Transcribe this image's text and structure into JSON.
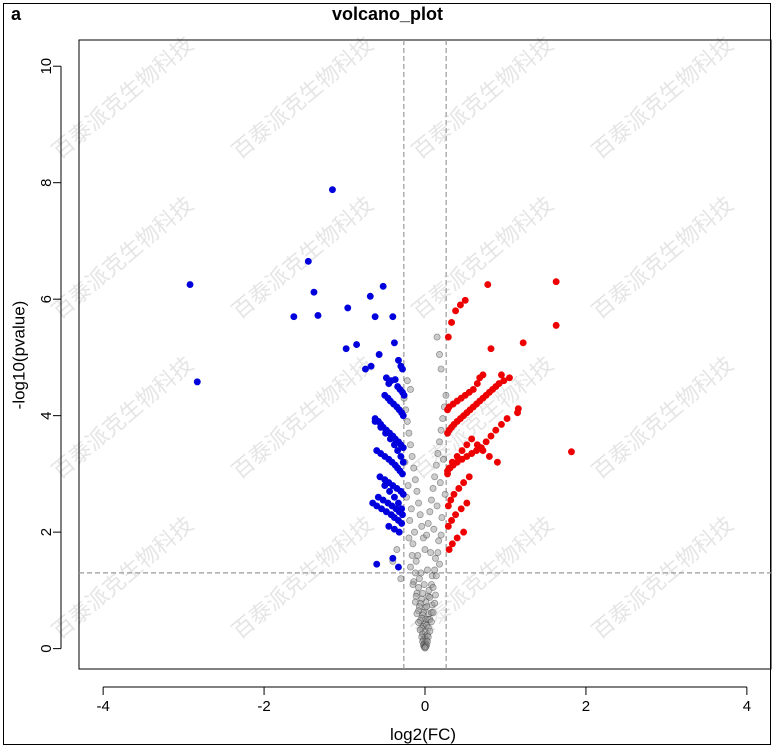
{
  "panel_label": "a",
  "chart_data": {
    "type": "scatter",
    "title": "volcano_plot",
    "xlabel": "log2(FC)",
    "ylabel": "-log10(pvalue)",
    "xlim": [
      -4.3,
      4.3
    ],
    "ylim": [
      -0.35,
      10.45
    ],
    "x_ticks": [
      -4,
      -2,
      0,
      2,
      4
    ],
    "y_ticks": [
      0,
      2,
      4,
      6,
      8,
      10
    ],
    "thresholds": {
      "log2fc": [
        -0.263,
        0.263
      ],
      "neg_log10_p": 1.301
    },
    "grid": false,
    "colors": {
      "down": "#0000dd",
      "up": "#ee0000",
      "ns": "#000000",
      "threshold_line": "#999999"
    },
    "series": [
      {
        "values_x": [
          -2.92,
          -2.83,
          -1.45,
          -1.38,
          -1.33,
          -1.63,
          -1.15,
          -0.96,
          -0.98,
          -0.85,
          -0.74,
          -0.68,
          -0.67,
          -0.62,
          -0.57,
          -0.52,
          -0.4,
          -0.38,
          -0.33,
          -0.3,
          -0.28,
          -0.48,
          -0.45,
          -0.42,
          -0.37,
          -0.34,
          -0.31,
          -0.28,
          -0.26,
          -0.5,
          -0.46,
          -0.43,
          -0.39,
          -0.35,
          -0.32,
          -0.29,
          -0.27,
          -0.62,
          -0.58,
          -0.55,
          -0.52,
          -0.48,
          -0.44,
          -0.4,
          -0.37,
          -0.33,
          -0.3,
          -0.27,
          -0.6,
          -0.55,
          -0.5,
          -0.45,
          -0.41,
          -0.37,
          -0.34,
          -0.31,
          -0.28,
          -0.56,
          -0.5,
          -0.45,
          -0.4,
          -0.35,
          -0.3,
          -0.27,
          -0.58,
          -0.52,
          -0.46,
          -0.41,
          -0.36,
          -0.32,
          -0.28,
          -0.65,
          -0.6,
          -0.54,
          -0.48,
          -0.42,
          -0.38,
          -0.33,
          -0.29,
          -0.62,
          -0.55,
          -0.49,
          -0.43,
          -0.38,
          -0.34,
          -0.3,
          -0.27,
          -0.5,
          -0.44,
          -0.38,
          -0.33,
          -0.29,
          -0.45,
          -0.38,
          -0.32,
          -0.6,
          -0.4,
          -0.33
        ],
        "values_y": [
          6.25,
          4.58,
          6.65,
          6.12,
          5.72,
          5.7,
          7.88,
          5.85,
          5.15,
          5.22,
          4.8,
          6.05,
          4.85,
          5.7,
          5.05,
          6.22,
          5.7,
          5.25,
          4.95,
          4.85,
          4.8,
          4.65,
          4.55,
          4.6,
          4.62,
          4.5,
          4.45,
          4.4,
          4.35,
          4.35,
          4.3,
          4.25,
          4.2,
          4.15,
          4.1,
          4.05,
          4.0,
          3.95,
          3.9,
          3.85,
          3.8,
          3.75,
          3.7,
          3.65,
          3.6,
          3.55,
          3.5,
          3.45,
          3.4,
          3.35,
          3.3,
          3.25,
          3.2,
          3.15,
          3.1,
          3.05,
          3.0,
          2.95,
          2.9,
          2.85,
          2.8,
          2.75,
          2.7,
          2.65,
          2.6,
          2.55,
          2.5,
          2.45,
          2.4,
          2.35,
          2.3,
          2.5,
          2.45,
          2.4,
          2.35,
          2.3,
          2.25,
          2.2,
          2.15,
          3.9,
          3.8,
          3.7,
          3.6,
          3.5,
          3.4,
          3.3,
          3.2,
          2.8,
          2.7,
          2.6,
          2.5,
          2.4,
          2.1,
          2.05,
          2.0,
          1.45,
          1.55,
          1.4
        ]
      },
      {
        "values_x": [
          1.63,
          1.63,
          1.82,
          1.22,
          1.16,
          1.05,
          0.95,
          0.82,
          0.78,
          0.72,
          0.68,
          0.65,
          0.6,
          0.55,
          0.5,
          0.45,
          0.4,
          0.35,
          0.3,
          0.28,
          0.98,
          0.92,
          0.88,
          0.84,
          0.8,
          0.76,
          0.72,
          0.68,
          0.64,
          0.6,
          0.56,
          0.52,
          0.48,
          0.44,
          0.4,
          0.36,
          0.33,
          0.3,
          0.28,
          1.15,
          1.02,
          0.95,
          0.88,
          0.82,
          0.76,
          0.7,
          0.64,
          0.58,
          0.52,
          0.46,
          0.4,
          0.35,
          0.31,
          0.28,
          0.9,
          0.8,
          0.72,
          0.65,
          0.58,
          0.52,
          0.46,
          0.4,
          0.34,
          0.3,
          0.28,
          0.55,
          0.48,
          0.42,
          0.36,
          0.32,
          0.29,
          0.5,
          0.44,
          0.38,
          0.33,
          0.29,
          0.52,
          0.45,
          0.38,
          0.33,
          0.29,
          0.48,
          0.4,
          0.34,
          0.3
        ],
        "values_y": [
          6.3,
          5.55,
          3.38,
          5.25,
          4.12,
          4.65,
          4.7,
          5.15,
          6.25,
          4.7,
          4.65,
          4.55,
          4.45,
          4.4,
          4.35,
          4.3,
          4.25,
          4.2,
          4.15,
          4.1,
          4.6,
          4.55,
          4.5,
          4.45,
          4.4,
          4.35,
          4.3,
          4.25,
          4.2,
          4.15,
          4.1,
          4.05,
          4.0,
          3.95,
          3.9,
          3.85,
          3.8,
          3.75,
          3.7,
          4.05,
          3.95,
          3.85,
          3.75,
          3.65,
          3.55,
          3.45,
          3.4,
          3.35,
          3.3,
          3.25,
          3.2,
          3.15,
          3.1,
          3.05,
          3.2,
          3.3,
          3.4,
          3.5,
          3.6,
          3.5,
          3.4,
          3.3,
          3.2,
          3.1,
          3.0,
          2.95,
          2.85,
          2.75,
          2.65,
          2.55,
          2.45,
          5.98,
          5.9,
          5.8,
          5.6,
          5.35,
          2.5,
          2.4,
          2.3,
          2.2,
          2.1,
          2.0,
          1.9,
          1.8,
          1.7
        ]
      },
      {
        "values_x": [
          -0.26,
          -0.24,
          -0.22,
          -0.2,
          -0.18,
          -0.16,
          -0.14,
          -0.12,
          -0.1,
          -0.08,
          -0.06,
          -0.04,
          -0.02,
          0.0,
          0.02,
          0.04,
          0.06,
          0.08,
          0.1,
          0.12,
          0.14,
          0.16,
          0.18,
          0.2,
          0.22,
          0.24,
          0.26,
          -0.25,
          -0.21,
          -0.17,
          -0.13,
          -0.09,
          -0.05,
          -0.01,
          0.03,
          0.07,
          0.11,
          0.15,
          0.19,
          0.23,
          -0.23,
          -0.19,
          -0.15,
          -0.11,
          -0.07,
          -0.03,
          0.01,
          0.05,
          0.09,
          0.13,
          0.17,
          0.21,
          0.25,
          -0.2,
          -0.16,
          -0.12,
          -0.08,
          -0.04,
          0.0,
          0.04,
          0.08,
          0.12,
          0.16,
          0.2,
          -0.18,
          -0.14,
          -0.1,
          -0.06,
          -0.02,
          0.02,
          0.06,
          0.1,
          0.14,
          0.18,
          -0.15,
          -0.11,
          -0.07,
          -0.03,
          0.01,
          0.05,
          0.09,
          0.13,
          -0.12,
          -0.08,
          -0.04,
          0.0,
          0.04,
          0.08,
          0.12,
          -0.1,
          -0.06,
          -0.02,
          0.02,
          0.06,
          0.1,
          -0.08,
          -0.04,
          0.0,
          0.04,
          0.08,
          -0.06,
          -0.03,
          0.0,
          0.03,
          0.06,
          -0.04,
          -0.02,
          0.0,
          0.02,
          0.04,
          -0.03,
          -0.01,
          0.01,
          0.03,
          -0.02,
          0.0,
          0.02,
          -0.01,
          0.0,
          0.01,
          0.0,
          -0.3,
          -0.35,
          -0.4,
          0.15,
          0.2,
          0.18,
          -0.22,
          -0.18
        ],
        "values_y": [
          4.3,
          4.1,
          3.9,
          3.7,
          3.5,
          3.3,
          3.1,
          2.9,
          2.7,
          2.5,
          2.3,
          2.1,
          1.9,
          1.7,
          1.95,
          2.15,
          2.35,
          2.55,
          2.75,
          2.95,
          3.15,
          3.35,
          3.55,
          3.75,
          3.95,
          4.15,
          4.35,
          3.2,
          2.8,
          2.4,
          2.0,
          1.6,
          1.3,
          1.1,
          1.35,
          1.65,
          2.05,
          2.45,
          2.85,
          3.25,
          2.6,
          2.2,
          1.8,
          1.5,
          1.2,
          0.95,
          0.8,
          1.0,
          1.25,
          1.55,
          1.85,
          2.25,
          2.65,
          1.9,
          1.6,
          1.3,
          1.05,
          0.85,
          0.7,
          0.9,
          1.1,
          1.35,
          1.65,
          1.95,
          1.4,
          1.15,
          0.95,
          0.78,
          0.62,
          0.72,
          0.88,
          1.05,
          1.25,
          1.45,
          1.1,
          0.9,
          0.72,
          0.58,
          0.5,
          0.6,
          0.75,
          0.92,
          0.8,
          0.65,
          0.52,
          0.42,
          0.5,
          0.62,
          0.78,
          0.6,
          0.48,
          0.38,
          0.4,
          0.5,
          0.62,
          0.45,
          0.35,
          0.3,
          0.36,
          0.46,
          0.32,
          0.25,
          0.2,
          0.24,
          0.3,
          0.2,
          0.15,
          0.12,
          0.15,
          0.2,
          0.12,
          0.08,
          0.08,
          0.12,
          0.06,
          0.04,
          0.06,
          0.03,
          0.02,
          0.03,
          0.01,
          1.2,
          1.7,
          1.5,
          5.35,
          4.8,
          5.05,
          4.6,
          4.45
        ]
      }
    ],
    "watermark": "百泰派克生物科技"
  }
}
